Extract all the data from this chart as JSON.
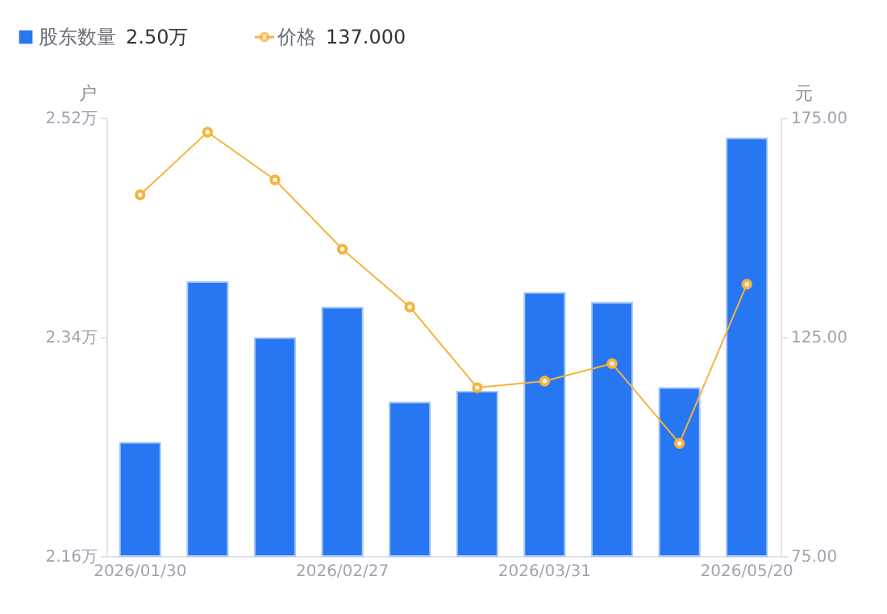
{
  "chart_data": {
    "type": "bar",
    "categories": [
      "2026/01/30",
      null,
      null,
      "2026/02/27",
      null,
      null,
      "2026/03/31",
      null,
      null,
      "2026/05/20"
    ],
    "series": [
      {
        "name": "股东数量",
        "color": "#2777f2",
        "values": [
          2.253,
          2.385,
          2.339,
          2.364,
          2.286,
          2.295,
          2.376,
          2.368,
          2.298,
          2.503
        ]
      },
      {
        "name": "价格",
        "type": "line",
        "axis": "y2",
        "color": "#f7b23d",
        "marker": "circle",
        "values": [
          157.4,
          171.7,
          160.8,
          145.0,
          131.8,
          113.4,
          114.9,
          118.9,
          100.7,
          137.0
        ]
      }
    ],
    "ylabel": "户",
    "y2label": "元",
    "ylim": [
      2.16,
      2.52
    ],
    "yticks": [
      {
        "value": 2.16,
        "label": "2.16万"
      },
      {
        "value": 2.34,
        "label": "2.34万"
      },
      {
        "value": 2.52,
        "label": "2.52万"
      }
    ],
    "y2lim": [
      75,
      175
    ],
    "y2ticks": [
      {
        "value": 75,
        "label": "75.00"
      },
      {
        "value": 125,
        "label": "125.00"
      },
      {
        "value": 175,
        "label": "175.00"
      }
    ],
    "annotations": [
      "2.50万",
      "137.000"
    ],
    "legend": "top left",
    "grid": false
  }
}
